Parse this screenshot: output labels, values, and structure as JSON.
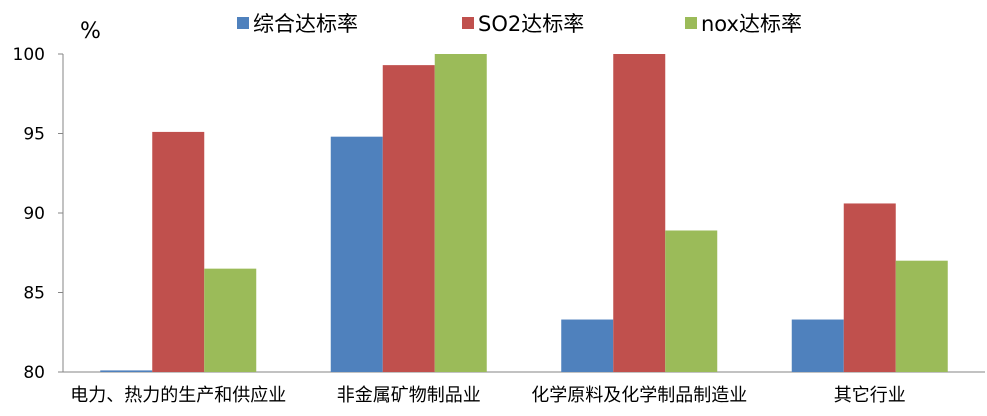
{
  "chart_data": {
    "type": "bar",
    "ylabel": "%",
    "ylim": [
      80,
      100
    ],
    "yticks": [
      80,
      85,
      90,
      95,
      100
    ],
    "categories": [
      "电力、热力的生产和供应业",
      "非金属矿物制品业",
      "化学原料及化学制品制造业",
      "其它行业"
    ],
    "series": [
      {
        "name": "综合达标率",
        "color": "#4F81BD",
        "values": [
          80.1,
          94.8,
          83.3,
          83.3
        ]
      },
      {
        "name": "SO2达标率",
        "color": "#C0504D",
        "values": [
          95.1,
          99.3,
          100,
          90.6
        ]
      },
      {
        "name": "nox达标率",
        "color": "#9BBB59",
        "values": [
          86.5,
          100,
          88.9,
          87.0
        ]
      }
    ],
    "legend_position": "top",
    "grid": false
  }
}
